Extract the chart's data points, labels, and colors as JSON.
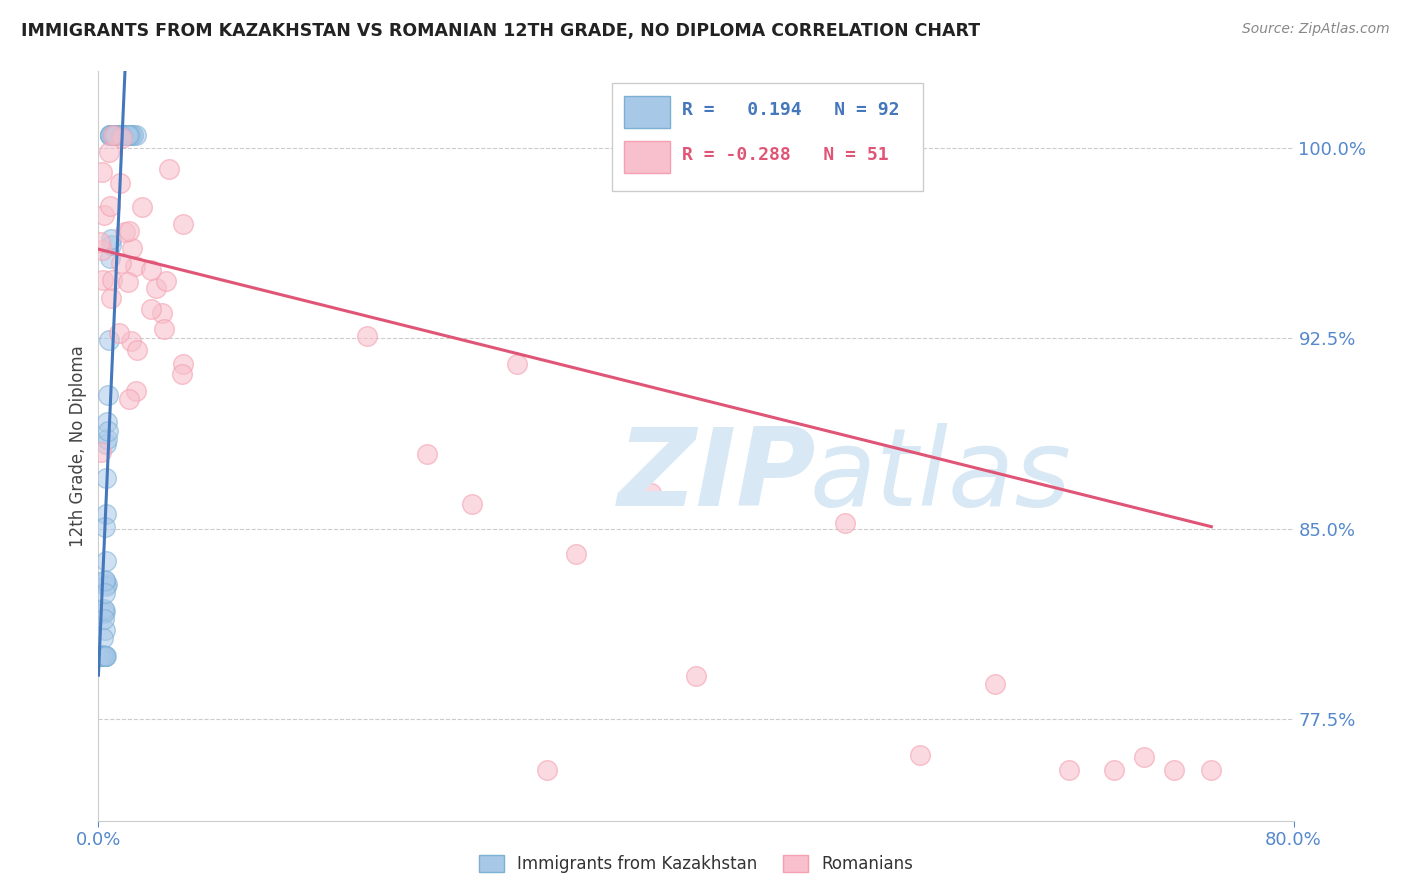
{
  "title": "IMMIGRANTS FROM KAZAKHSTAN VS ROMANIAN 12TH GRADE, NO DIPLOMA CORRELATION CHART",
  "source": "Source: ZipAtlas.com",
  "ylabel": "12th Grade, No Diploma",
  "y_ticks": [
    0.775,
    0.85,
    0.925,
    1.0
  ],
  "y_tick_labels": [
    "77.5%",
    "85.0%",
    "92.5%",
    "100.0%"
  ],
  "xlim": [
    0.0,
    0.8
  ],
  "ylim": [
    0.735,
    1.03
  ],
  "legend1_r": "0.194",
  "legend1_n": "92",
  "legend2_r": "-0.288",
  "legend2_n": "51",
  "legend1_label": "Immigrants from Kazakhstan",
  "legend2_label": "Romanians",
  "blue_color": "#7BAFD4",
  "pink_color": "#F4A0B0",
  "blue_fill": "#A8C8E8",
  "pink_fill": "#F8C0CC",
  "blue_line_color": "#4477BB",
  "pink_line_color": "#E05575",
  "watermark_color": "#D8E8F4",
  "background_color": "#ffffff",
  "grid_color": "#CCCCCC",
  "axis_label_color": "#5588CC",
  "title_color": "#222222",
  "source_color": "#888888",
  "ylabel_color": "#444444"
}
